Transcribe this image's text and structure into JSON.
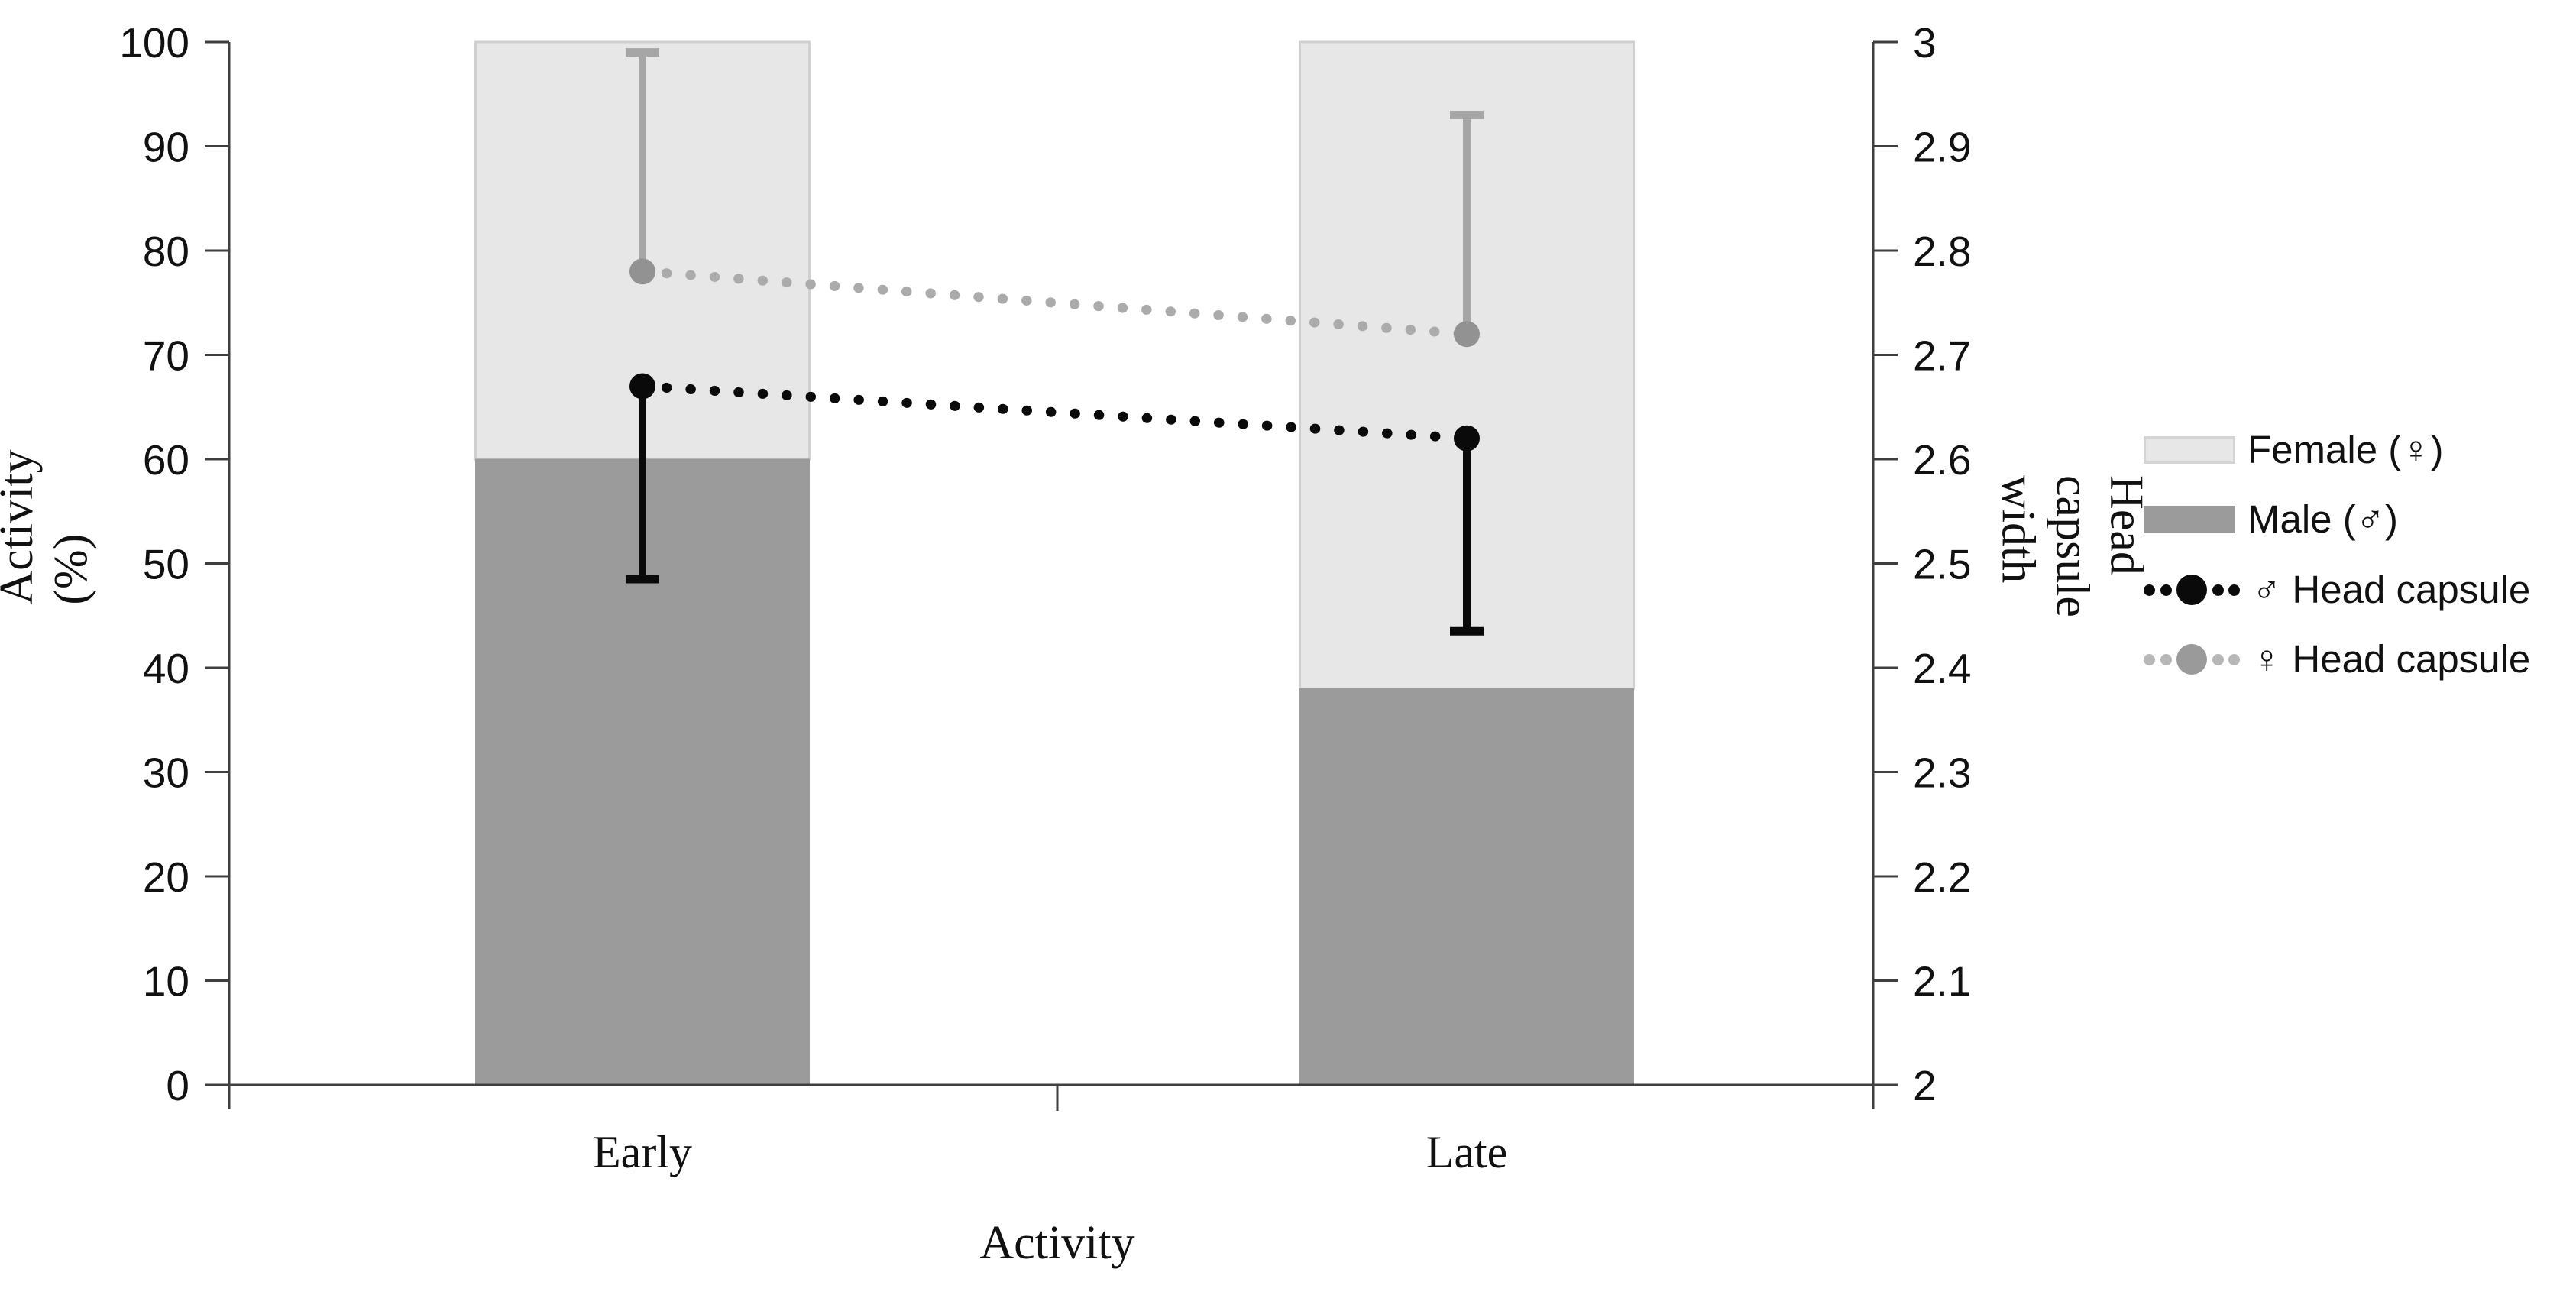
{
  "figure": {
    "background": "#ffffff",
    "description": "Stacked bar chart of activity (%) by sex with overlaid dotted line series of head capsule width, for Early vs Late activity"
  },
  "chart_data": {
    "type": "bar",
    "combo": [
      "stacked-bar",
      "line-with-error-bars"
    ],
    "categories": [
      "Early",
      "Late"
    ],
    "x_axis": {
      "label": "Activity"
    },
    "left_axis": {
      "label": "Activity (%)",
      "min": 0,
      "max": 100,
      "step": 10,
      "ticks": [
        "0",
        "10",
        "20",
        "30",
        "40",
        "50",
        "60",
        "70",
        "80",
        "90",
        "100"
      ]
    },
    "right_axis": {
      "label": "Head capsule width",
      "min": 2,
      "max": 3,
      "step": 0.1,
      "ticks": [
        "2",
        "2.1",
        "2.2",
        "2.3",
        "2.4",
        "2.5",
        "2.6",
        "2.7",
        "2.8",
        "2.9",
        "3"
      ]
    },
    "grid": false,
    "bar_series": [
      {
        "name": "Male (♂)",
        "axis": "left",
        "stack_position": "bottom",
        "values": [
          60,
          38
        ],
        "color": "#9b9b9b",
        "border_color": "#8f8f8f"
      },
      {
        "name": "Female (♀)",
        "axis": "left",
        "stack_position": "top",
        "values": [
          40,
          62
        ],
        "stack_totals": [
          100,
          100
        ],
        "color": "#e7e7e7",
        "border_color": "#d0d0d0"
      }
    ],
    "line_series": [
      {
        "name": "♂ Head capsule",
        "axis": "right",
        "values": [
          2.67,
          2.62
        ],
        "error_whisker_to": [
          2.485,
          2.435
        ],
        "error_direction": "down",
        "color": "#0a0a0a",
        "marker_color": "#0a0a0a",
        "style": "dotted"
      },
      {
        "name": "♀ Head capsule",
        "axis": "right",
        "values": [
          2.78,
          2.72
        ],
        "error_whisker_to": [
          2.99,
          2.93
        ],
        "error_direction": "up",
        "color": "#ababab",
        "marker_color": "#929292",
        "error_color": "#a6a6a6",
        "style": "dotted"
      }
    ],
    "legend": {
      "position": "right",
      "items": [
        {
          "label": "Female (♀)",
          "swatch": "light-gray-bar"
        },
        {
          "label": "Male (♂)",
          "swatch": "dark-gray-bar"
        },
        {
          "label": "♂ Head capsule",
          "swatch": "black-dotted-marker"
        },
        {
          "label": "♀ Head capsule",
          "swatch": "gray-dotted-marker"
        }
      ]
    },
    "colors": {
      "axis_line": "#3f3f3f",
      "text": "#111111"
    }
  }
}
